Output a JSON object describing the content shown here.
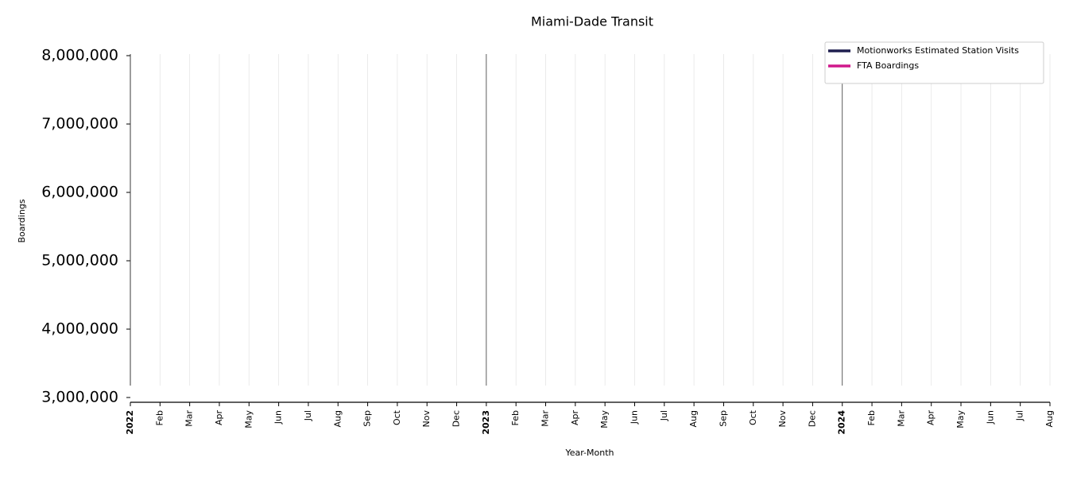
{
  "chart_data": {
    "type": "line",
    "title": "Miami-Dade Transit",
    "x_label": "Year-Month",
    "y_label": "Boardings",
    "x": [],
    "series": [
      {
        "name": "Motionworks Estimated Station Visits",
        "color": "#1f1f4f",
        "values": []
      },
      {
        "name": "FTA Boardings",
        "color": "#d0188c",
        "values": []
      }
    ],
    "xlim": [
      "2022-01",
      "2024-08"
    ],
    "xticks": [
      {
        "value": "2022-01",
        "label": "2022"
      },
      {
        "value": "2022-02",
        "label": "Feb"
      },
      {
        "value": "2022-03",
        "label": "Mar"
      },
      {
        "value": "2022-04",
        "label": "Apr"
      },
      {
        "value": "2022-05",
        "label": "May"
      },
      {
        "value": "2022-06",
        "label": "Jun"
      },
      {
        "value": "2022-07",
        "label": "Jul"
      },
      {
        "value": "2022-08",
        "label": "Aug"
      },
      {
        "value": "2022-09",
        "label": "Sep"
      },
      {
        "value": "2022-10",
        "label": "Oct"
      },
      {
        "value": "2022-11",
        "label": "Nov"
      },
      {
        "value": "2022-12",
        "label": "Dec"
      },
      {
        "value": "2023-01",
        "label": "2023"
      },
      {
        "value": "2023-02",
        "label": "Feb"
      },
      {
        "value": "2023-03",
        "label": "Mar"
      },
      {
        "value": "2023-04",
        "label": "Apr"
      },
      {
        "value": "2023-05",
        "label": "May"
      },
      {
        "value": "2023-06",
        "label": "Jun"
      },
      {
        "value": "2023-07",
        "label": "Jul"
      },
      {
        "value": "2023-08",
        "label": "Aug"
      },
      {
        "value": "2023-09",
        "label": "Sep"
      },
      {
        "value": "2023-10",
        "label": "Oct"
      },
      {
        "value": "2023-11",
        "label": "Nov"
      },
      {
        "value": "2023-12",
        "label": "Dec"
      },
      {
        "value": "2024-01",
        "label": "2024"
      },
      {
        "value": "2024-02",
        "label": "Feb"
      },
      {
        "value": "2024-03",
        "label": "Mar"
      },
      {
        "value": "2024-04",
        "label": "Apr"
      },
      {
        "value": "2024-05",
        "label": "May"
      },
      {
        "value": "2024-06",
        "label": "Jun"
      },
      {
        "value": "2024-07",
        "label": "Jul"
      },
      {
        "value": "2024-08",
        "label": "Aug"
      }
    ],
    "ylim": [
      3000000,
      8000000
    ],
    "yticks": [
      {
        "value": 3000000,
        "label": "3,000,000"
      },
      {
        "value": 4000000,
        "label": "4,000,000"
      },
      {
        "value": 5000000,
        "label": "5,000,000"
      },
      {
        "value": 6000000,
        "label": "6,000,000"
      },
      {
        "value": 7000000,
        "label": "7,000,000"
      },
      {
        "value": 8000000,
        "label": "8,000,000"
      }
    ],
    "grid": true,
    "legend": "upper right"
  }
}
